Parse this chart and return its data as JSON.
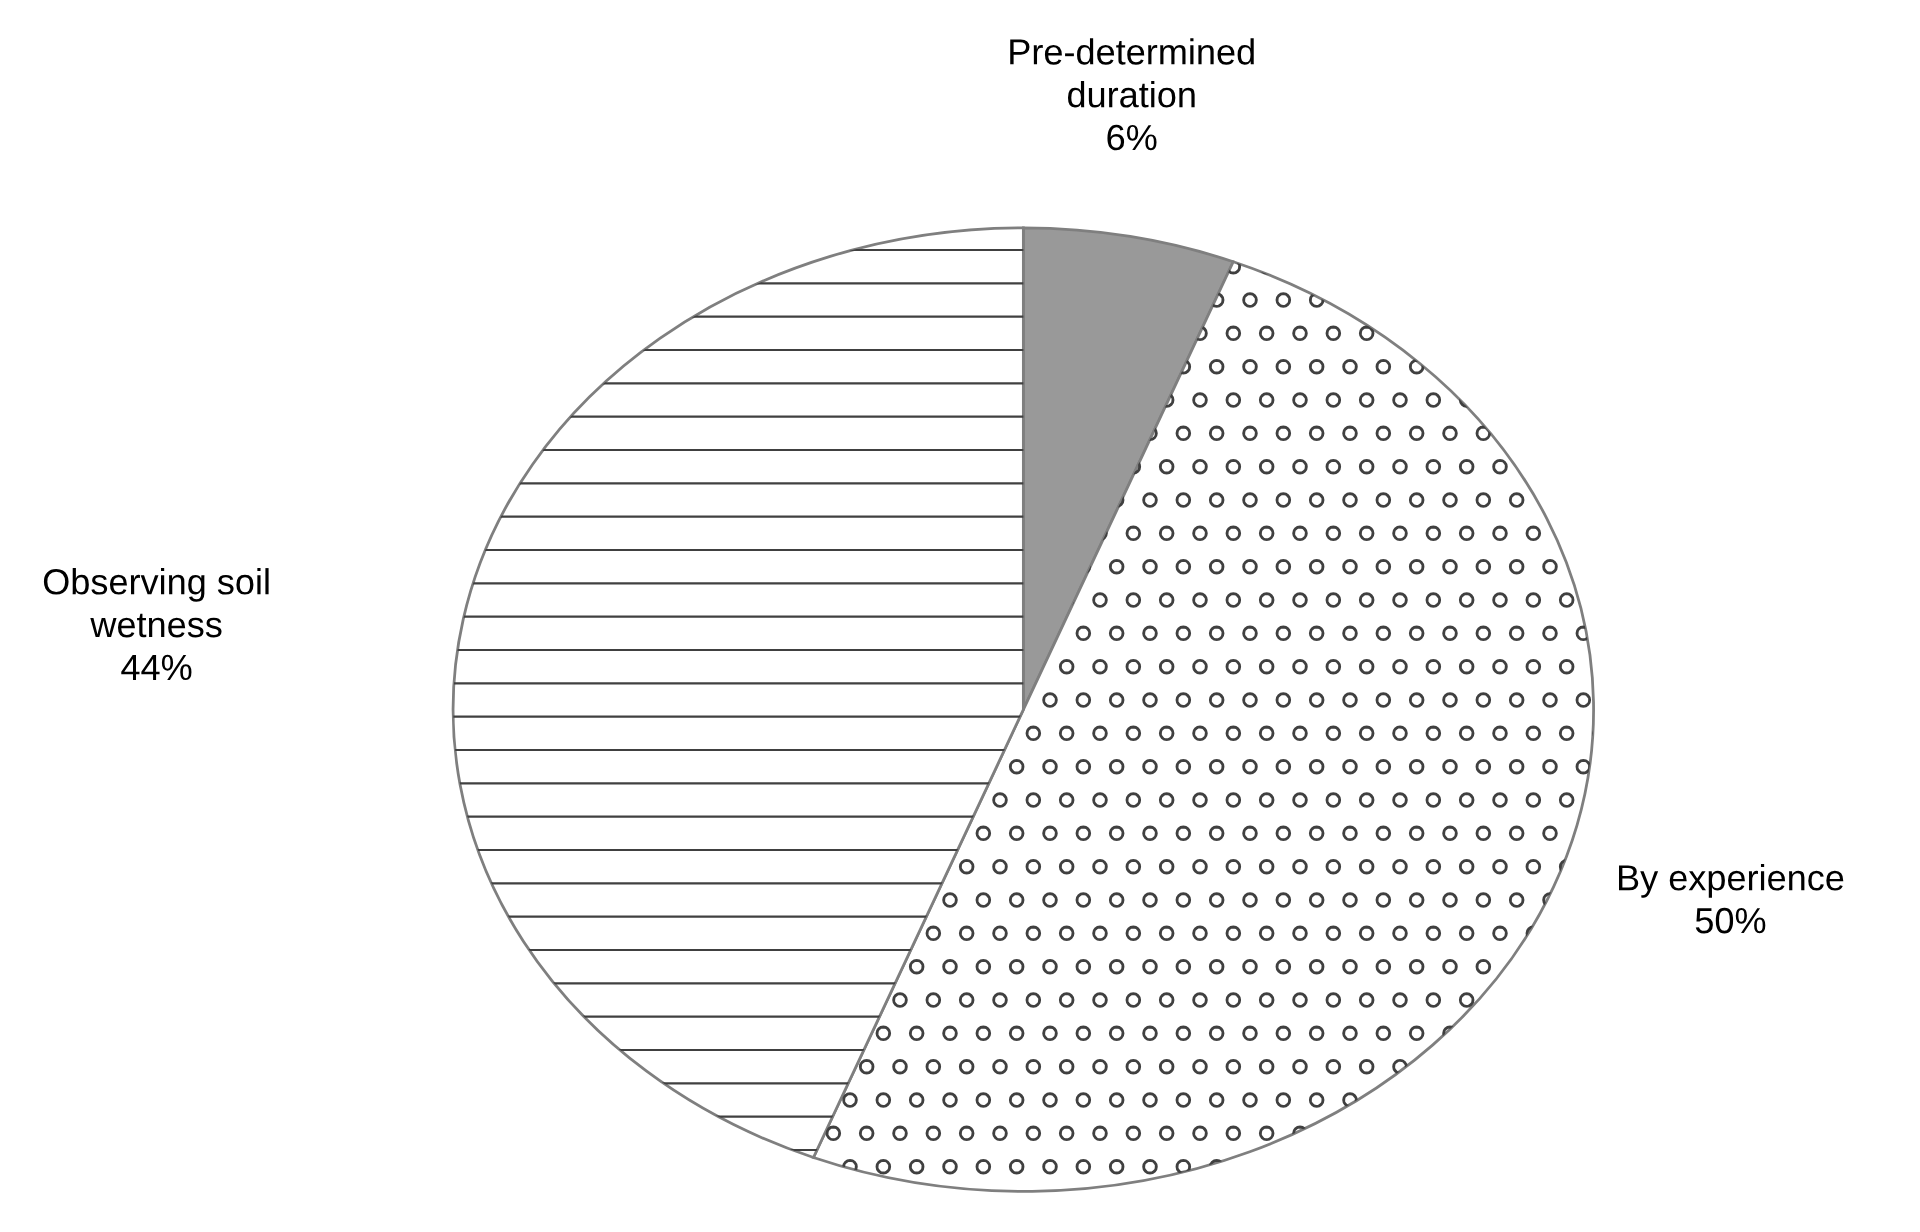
{
  "chart_data": {
    "type": "pie",
    "categories": [
      "Pre-determined\nduration",
      "By experience",
      "Observing soil\nwetness"
    ],
    "values": [
      6,
      50,
      44
    ],
    "value_labels": [
      "6%",
      "50%",
      "44%"
    ],
    "colors": [
      "#999999",
      "#ffffff",
      "#ffffff"
    ],
    "legend": false
  }
}
